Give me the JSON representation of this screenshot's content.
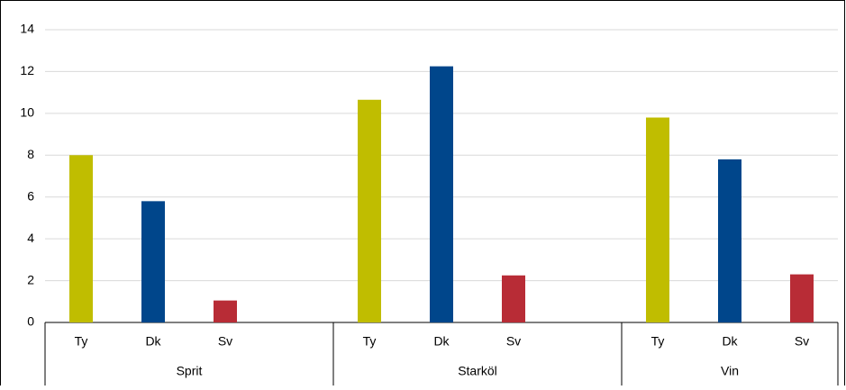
{
  "chart_data": {
    "type": "bar",
    "groups": [
      {
        "name": "Sprit",
        "categories": [
          "Ty",
          "Dk",
          "Sv",
          null
        ],
        "values": [
          8.0,
          5.8,
          1.05,
          null
        ]
      },
      {
        "name": "Starköl",
        "categories": [
          "Ty",
          "Dk",
          "Sv",
          null
        ],
        "values": [
          10.65,
          12.25,
          2.25,
          null
        ]
      },
      {
        "name": "Vin",
        "categories": [
          "Ty",
          "Dk",
          "Sv"
        ],
        "values": [
          9.8,
          7.8,
          2.3
        ]
      }
    ],
    "colors": [
      "#c0bd00",
      "#00468b",
      "#b82c36"
    ],
    "ylim": [
      0,
      14
    ],
    "yticks": [
      0,
      2,
      4,
      6,
      8,
      10,
      12,
      14
    ],
    "grid": true
  }
}
